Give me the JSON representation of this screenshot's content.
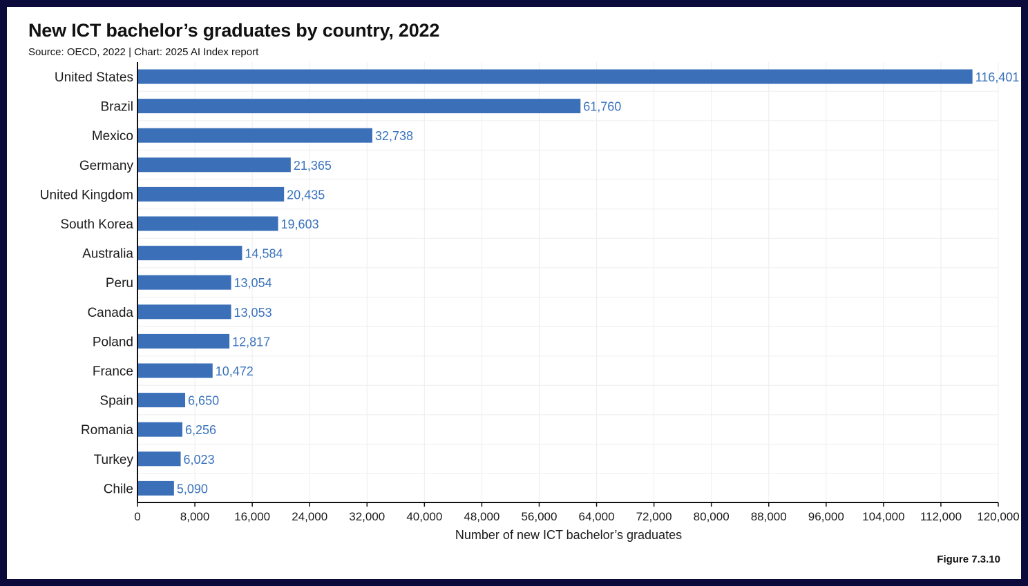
{
  "header": {
    "title": "New ICT bachelor’s graduates by country, 2022",
    "subtitle": "Source: OECD, 2022 | Chart: 2025 AI Index report"
  },
  "footer": {
    "figure_label": "Figure 7.3.10"
  },
  "colors": {
    "bar": "#3b70b9",
    "value_label": "#3a73bd",
    "frame": "#0b0a3a"
  },
  "chart_data": {
    "type": "bar",
    "orientation": "horizontal",
    "title": "New ICT bachelor’s graduates by country, 2022",
    "xlabel": "Number of new ICT bachelor’s graduates",
    "ylabel": "",
    "xlim": [
      0,
      120000
    ],
    "xticks": [
      0,
      8000,
      16000,
      24000,
      32000,
      40000,
      48000,
      56000,
      64000,
      72000,
      80000,
      88000,
      96000,
      104000,
      112000,
      120000
    ],
    "xtick_labels": [
      "0",
      "8,000",
      "16,000",
      "24,000",
      "32,000",
      "40,000",
      "48,000",
      "56,000",
      "64,000",
      "72,000",
      "80,000",
      "88,000",
      "96,000",
      "104,000",
      "112,000",
      "120,000"
    ],
    "grid": true,
    "categories": [
      "United States",
      "Brazil",
      "Mexico",
      "Germany",
      "United Kingdom",
      "South Korea",
      "Australia",
      "Peru",
      "Canada",
      "Poland",
      "France",
      "Spain",
      "Romania",
      "Turkey",
      "Chile"
    ],
    "values": [
      116401,
      61760,
      32738,
      21365,
      20435,
      19603,
      14584,
      13054,
      13053,
      12817,
      10472,
      6650,
      6256,
      6023,
      5090
    ],
    "value_labels": [
      "116,401",
      "61,760",
      "32,738",
      "21,365",
      "20,435",
      "19,603",
      "14,584",
      "13,054",
      "13,053",
      "12,817",
      "10,472",
      "6,650",
      "6,256",
      "6,023",
      "5,090"
    ]
  }
}
